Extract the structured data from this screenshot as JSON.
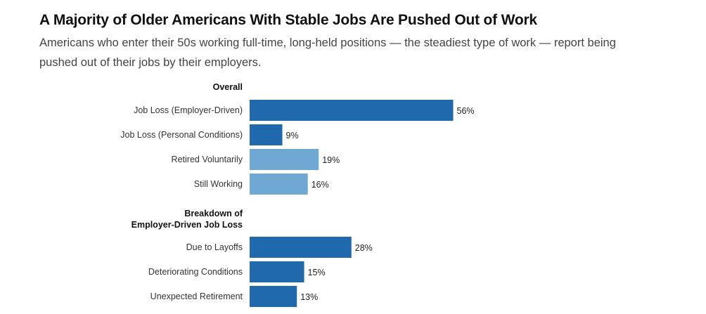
{
  "title": "A Majority of Older Americans With Stable Jobs Are Pushed Out of Work",
  "subtitle": "Americans who enter their 50s working full-time, long-held positions — the steadiest type of work — report being pushed out of their jobs by their employers.",
  "colors": {
    "dark_blue": "#1f69ac",
    "light_blue": "#6fa8d2"
  },
  "chart_data": [
    {
      "type": "bar",
      "orientation": "horizontal",
      "section_label": "Overall",
      "categories": [
        "Job Loss (Employer-Driven)",
        "Job Loss (Personal Conditions)",
        "Retired Voluntarily",
        "Still Working"
      ],
      "values": [
        56,
        9,
        19,
        16
      ],
      "value_labels": [
        "56%",
        "9%",
        "19%",
        "16%"
      ],
      "bar_colors": [
        "#1f69ac",
        "#1f69ac",
        "#6fa8d2",
        "#6fa8d2"
      ],
      "unit": "%"
    },
    {
      "type": "bar",
      "orientation": "horizontal",
      "section_label": "Breakdown of Employer-Driven Job Loss",
      "section_label_lines": [
        "Breakdown of",
        "Employer-Driven Job Loss"
      ],
      "categories": [
        "Due to Layoffs",
        "Deteriorating Conditions",
        "Unexpected Retirement"
      ],
      "values": [
        28,
        15,
        13
      ],
      "value_labels": [
        "28%",
        "15%",
        "13%"
      ],
      "bar_colors": [
        "#1f69ac",
        "#1f69ac",
        "#1f69ac"
      ],
      "unit": "%"
    }
  ]
}
